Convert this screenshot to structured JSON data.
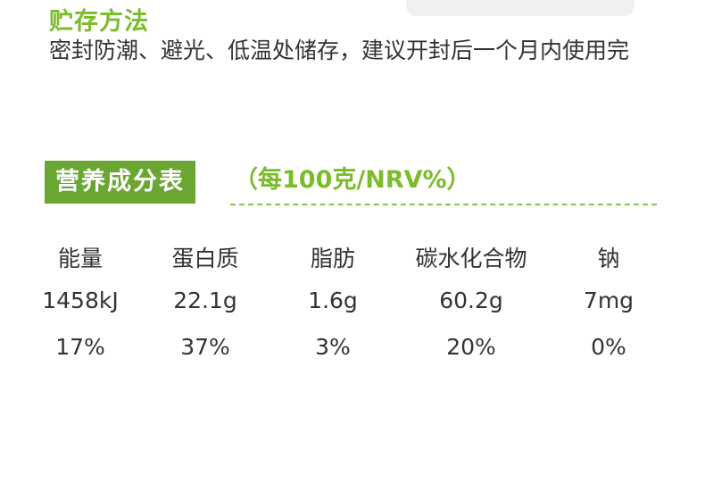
{
  "storage": {
    "title": "贮存方法",
    "text": "密封防潮、避光、低温处储存，建议开封后一个月内使用完"
  },
  "nutrition": {
    "title": "营养成分表",
    "subtitle": "（每100克/NRV%）",
    "columns": [
      {
        "name": "能量",
        "amount": "1458kJ",
        "nrv": "17%"
      },
      {
        "name": "蛋白质",
        "amount": "22.1g",
        "nrv": "37%"
      },
      {
        "name": "脂肪",
        "amount": "1.6g",
        "nrv": "3%"
      },
      {
        "name": "碳水化合物",
        "amount": "60.2g",
        "nrv": "20%"
      },
      {
        "name": "钠",
        "amount": "7mg",
        "nrv": "0%"
      }
    ]
  },
  "colors": {
    "accent_green": "#7cbb2b",
    "header_bg": "#6aa632",
    "text": "#333333"
  }
}
